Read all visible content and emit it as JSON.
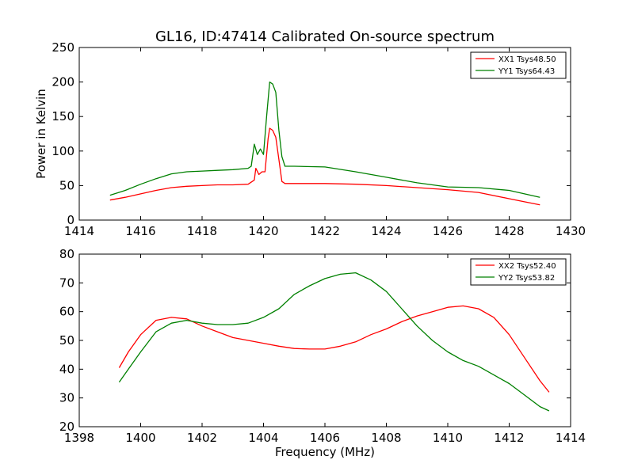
{
  "chart_data": [
    {
      "type": "line",
      "title": "GL16, ID:47414 Calibrated On-source spectrum",
      "xlabel": "",
      "ylabel": "Power in Kelvin",
      "xlim": [
        1414,
        1430
      ],
      "ylim": [
        0,
        250
      ],
      "xticks": [
        1414,
        1416,
        1418,
        1420,
        1422,
        1424,
        1426,
        1428,
        1430
      ],
      "yticks": [
        0,
        50,
        100,
        150,
        200,
        250
      ],
      "legend_position": "top-right",
      "grid": false,
      "series": [
        {
          "name": "XX1 Tsys48.50",
          "color": "#ff0000",
          "points": [
            [
              1415.0,
              29
            ],
            [
              1415.5,
              33
            ],
            [
              1416.0,
              38
            ],
            [
              1416.5,
              43
            ],
            [
              1417.0,
              47
            ],
            [
              1417.5,
              49
            ],
            [
              1418.0,
              50
            ],
            [
              1418.5,
              51
            ],
            [
              1419.0,
              51
            ],
            [
              1419.5,
              52
            ],
            [
              1419.7,
              58
            ],
            [
              1419.75,
              75
            ],
            [
              1419.85,
              66
            ],
            [
              1419.95,
              70
            ],
            [
              1420.05,
              70
            ],
            [
              1420.15,
              118
            ],
            [
              1420.2,
              133
            ],
            [
              1420.3,
              130
            ],
            [
              1420.4,
              120
            ],
            [
              1420.5,
              88
            ],
            [
              1420.6,
              56
            ],
            [
              1420.7,
              53
            ],
            [
              1421.0,
              53
            ],
            [
              1422.0,
              53
            ],
            [
              1423.0,
              52
            ],
            [
              1424.0,
              50
            ],
            [
              1425.0,
              47
            ],
            [
              1426.0,
              44
            ],
            [
              1427.0,
              40
            ],
            [
              1428.0,
              31
            ],
            [
              1429.0,
              22
            ]
          ]
        },
        {
          "name": "YY1 Tsys64.43",
          "color": "#008000",
          "points": [
            [
              1415.0,
              36
            ],
            [
              1415.5,
              43
            ],
            [
              1416.0,
              52
            ],
            [
              1416.5,
              60
            ],
            [
              1417.0,
              67
            ],
            [
              1417.5,
              70
            ],
            [
              1418.0,
              71
            ],
            [
              1418.5,
              72
            ],
            [
              1419.0,
              73
            ],
            [
              1419.5,
              75
            ],
            [
              1419.6,
              78
            ],
            [
              1419.7,
              110
            ],
            [
              1419.8,
              95
            ],
            [
              1419.9,
              103
            ],
            [
              1420.0,
              95
            ],
            [
              1420.1,
              150
            ],
            [
              1420.2,
              200
            ],
            [
              1420.3,
              197
            ],
            [
              1420.4,
              185
            ],
            [
              1420.5,
              130
            ],
            [
              1420.6,
              92
            ],
            [
              1420.7,
              78
            ],
            [
              1421.0,
              78
            ],
            [
              1422.0,
              77
            ],
            [
              1423.0,
              70
            ],
            [
              1424.0,
              62
            ],
            [
              1425.0,
              54
            ],
            [
              1426.0,
              48
            ],
            [
              1427.0,
              47
            ],
            [
              1428.0,
              43
            ],
            [
              1429.0,
              33
            ]
          ]
        }
      ]
    },
    {
      "type": "line",
      "title": "",
      "xlabel": "Frequency (MHz)",
      "ylabel": "",
      "xlim": [
        1398,
        1414
      ],
      "ylim": [
        20,
        80
      ],
      "xticks": [
        1398,
        1400,
        1402,
        1404,
        1406,
        1408,
        1410,
        1412,
        1414
      ],
      "yticks": [
        20,
        30,
        40,
        50,
        60,
        70,
        80
      ],
      "legend_position": "top-right",
      "grid": false,
      "series": [
        {
          "name": "XX2 Tsys52.40",
          "color": "#ff0000",
          "points": [
            [
              1399.3,
              40.5
            ],
            [
              1399.6,
              46
            ],
            [
              1400.0,
              52
            ],
            [
              1400.5,
              57
            ],
            [
              1401.0,
              58
            ],
            [
              1401.5,
              57.5
            ],
            [
              1402.0,
              55
            ],
            [
              1402.5,
              53
            ],
            [
              1403.0,
              51
            ],
            [
              1403.5,
              50
            ],
            [
              1404.0,
              49
            ],
            [
              1404.5,
              48
            ],
            [
              1405.0,
              47.2
            ],
            [
              1405.5,
              47
            ],
            [
              1406.0,
              47
            ],
            [
              1406.5,
              48
            ],
            [
              1407.0,
              49.5
            ],
            [
              1407.5,
              52
            ],
            [
              1408.0,
              54
            ],
            [
              1408.5,
              56.5
            ],
            [
              1409.0,
              58.5
            ],
            [
              1409.5,
              60
            ],
            [
              1410.0,
              61.5
            ],
            [
              1410.5,
              62
            ],
            [
              1411.0,
              61
            ],
            [
              1411.5,
              58
            ],
            [
              1412.0,
              52
            ],
            [
              1412.5,
              44
            ],
            [
              1413.0,
              36
            ],
            [
              1413.3,
              32
            ]
          ]
        },
        {
          "name": "YY2 Tsys53.82",
          "color": "#008000",
          "points": [
            [
              1399.3,
              35.5
            ],
            [
              1399.6,
              40
            ],
            [
              1400.0,
              46
            ],
            [
              1400.5,
              53
            ],
            [
              1401.0,
              56
            ],
            [
              1401.5,
              57
            ],
            [
              1402.0,
              56
            ],
            [
              1402.5,
              55.5
            ],
            [
              1403.0,
              55.5
            ],
            [
              1403.5,
              56
            ],
            [
              1404.0,
              58
            ],
            [
              1404.5,
              61
            ],
            [
              1405.0,
              66
            ],
            [
              1405.5,
              69
            ],
            [
              1406.0,
              71.5
            ],
            [
              1406.5,
              73
            ],
            [
              1407.0,
              73.5
            ],
            [
              1407.5,
              71
            ],
            [
              1408.0,
              67
            ],
            [
              1408.5,
              61
            ],
            [
              1409.0,
              55
            ],
            [
              1409.5,
              50
            ],
            [
              1410.0,
              46
            ],
            [
              1410.5,
              43
            ],
            [
              1411.0,
              41
            ],
            [
              1411.5,
              38
            ],
            [
              1412.0,
              35
            ],
            [
              1412.5,
              31
            ],
            [
              1413.0,
              27
            ],
            [
              1413.3,
              25.5
            ]
          ]
        }
      ]
    }
  ]
}
